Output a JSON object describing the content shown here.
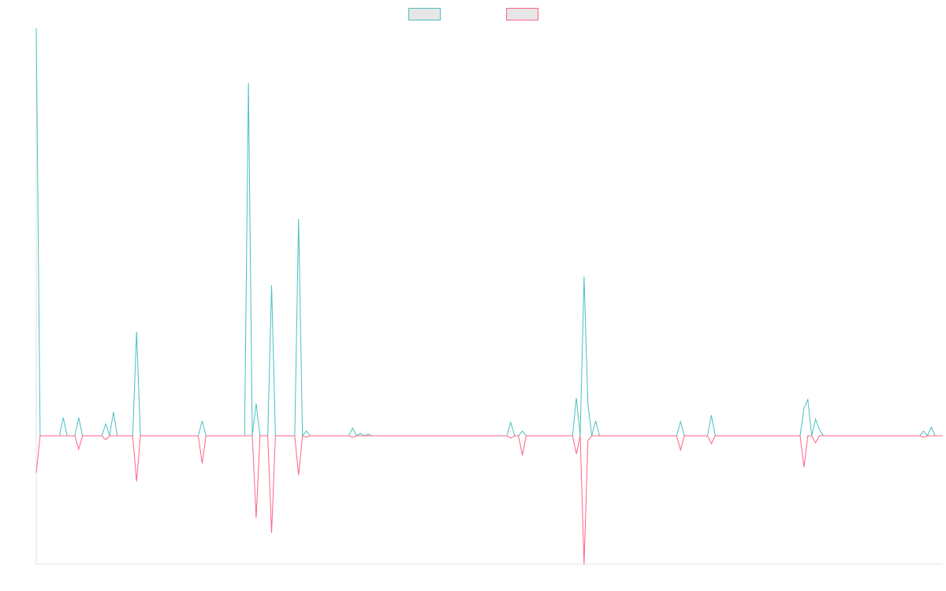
{
  "chart_data": {
    "type": "line",
    "legend": "top",
    "xlim": [
      0,
      235
    ],
    "ylim": [
      -16.3,
      51.7
    ],
    "x": [
      0,
      1,
      6,
      7,
      8,
      10,
      11,
      12,
      17,
      18,
      19,
      20,
      21,
      25,
      26,
      27,
      42,
      43,
      44,
      54,
      55,
      56,
      57,
      58,
      60,
      61,
      62,
      67,
      68,
      69,
      70,
      71,
      81,
      82,
      83,
      84,
      85,
      86,
      87,
      122,
      123,
      124,
      125,
      126,
      127,
      139,
      140,
      141,
      142,
      143,
      144,
      145,
      146,
      166,
      167,
      168,
      174,
      175,
      176,
      198,
      199,
      200,
      201,
      202,
      203,
      204,
      229,
      230,
      231,
      232,
      233,
      235
    ],
    "series": [
      {
        "color": "#4bc0c0",
        "values": [
          51.7,
          0,
          0,
          2.3,
          0,
          0,
          2.3,
          0,
          0,
          1.5,
          0,
          3.0,
          0,
          0,
          13.2,
          0,
          0,
          1.9,
          0,
          0,
          44.8,
          0,
          4.1,
          0,
          0,
          19.1,
          0,
          0,
          27.5,
          0,
          0.6,
          0,
          0,
          1.0,
          0,
          0.3,
          0,
          0.2,
          0,
          0,
          1.7,
          0,
          0,
          0.6,
          0,
          0,
          4.8,
          0,
          20.2,
          4.0,
          0,
          1.9,
          0,
          0,
          1.8,
          0,
          0,
          2.6,
          0,
          0,
          3.5,
          4.6,
          0,
          2.1,
          0.8,
          0,
          0,
          0.6,
          0,
          1.1,
          0,
          0
        ]
      },
      {
        "color": "#ff6384",
        "values": [
          -4.7,
          0,
          0,
          0,
          0,
          0,
          -1.7,
          0,
          0,
          -0.5,
          0,
          0,
          0,
          0,
          -5.8,
          0,
          0,
          -3.5,
          0,
          0,
          0,
          0,
          -10.4,
          0,
          0,
          -12.3,
          0,
          0,
          -5.0,
          0,
          -0.2,
          0,
          0,
          -0.2,
          0,
          0,
          0,
          0,
          0,
          0,
          -0.3,
          0,
          0,
          -2.5,
          0,
          0,
          -2.3,
          0,
          -16.3,
          -0.6,
          0,
          0,
          0,
          0,
          -1.8,
          0,
          0,
          -1.0,
          0,
          0,
          -4.0,
          0,
          0,
          -0.9,
          0,
          0,
          0,
          -0.2,
          0,
          0,
          0,
          0
        ]
      }
    ]
  }
}
